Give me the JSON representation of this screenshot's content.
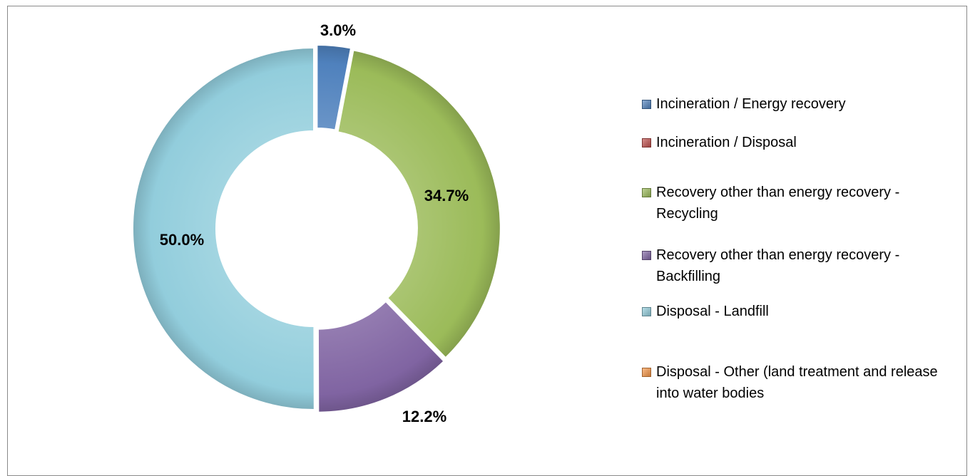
{
  "chart_data": {
    "type": "pie",
    "subtype": "donut",
    "legend_position": "right",
    "title": "",
    "series": [
      {
        "name": "Incineration / Energy recovery",
        "value": 3.0,
        "label": "3.0%",
        "color": "#4F81BD"
      },
      {
        "name": "Incineration / Disposal",
        "value": 0.0,
        "label": "",
        "color": "#C0504D"
      },
      {
        "name": "Recovery other than energy recovery - Recycling",
        "value": 34.7,
        "label": "34.7%",
        "color": "#9BBB59"
      },
      {
        "name": "Recovery other than energy recovery - Backfilling",
        "value": 12.2,
        "label": "12.2%",
        "color": "#8064A2"
      },
      {
        "name": "Disposal - Landfill",
        "value": 50.0,
        "label": "50.0%",
        "color": "#92CDDC"
      },
      {
        "name": "Disposal - Other (land treatment and release into water bodies",
        "value": 0.0,
        "label": "",
        "color": "#F79646"
      }
    ]
  }
}
